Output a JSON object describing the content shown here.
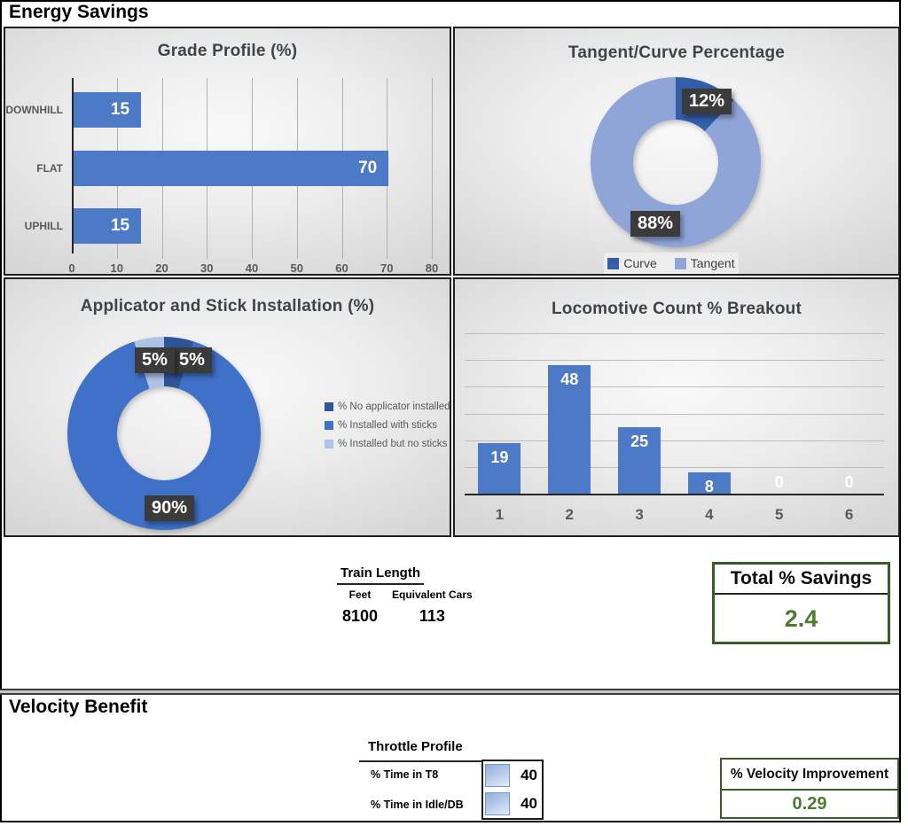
{
  "sections": {
    "energy_savings_title": "Energy Savings",
    "velocity_benefit_title": "Velocity Benefit"
  },
  "colors": {
    "bar_blue": "#4c7ac6",
    "donut_dark_blue": "#2e5597",
    "donut_medium_blue": "#3f71c8",
    "donut_light_blue": "#8fa5d8",
    "donut_pale_blue": "#aec2e8",
    "data_label_box": "#3b3b3b",
    "value_green": "#4e7b31",
    "border_green": "#375623"
  },
  "chart_data": [
    {
      "type": "bar",
      "orientation": "horizontal",
      "title": "Grade Profile (%)",
      "categories": [
        "DOWNHILL",
        "FLAT",
        "UPHILL"
      ],
      "values": [
        15,
        70,
        15
      ],
      "xlim": [
        0,
        80
      ],
      "ticks": [
        0,
        10,
        20,
        30,
        40,
        50,
        60,
        70,
        80
      ],
      "grid": true,
      "bar_color": "#4c7ac6",
      "data_labels": "inside-end, white"
    },
    {
      "type": "donut",
      "title": "Tangent/Curve Percentage",
      "segments": [
        {
          "label": "Curve",
          "value": 12,
          "pct_label": "12%",
          "color": "#335ea9"
        },
        {
          "label": "Tangent",
          "value": 88,
          "pct_label": "88%",
          "color": "#8fa5d8"
        }
      ],
      "legend_position": "bottom"
    },
    {
      "type": "donut",
      "title": "Applicator and Stick Installation (%)",
      "segments": [
        {
          "label": "% No applicator installed",
          "value": 5,
          "pct_label": "5%",
          "color": "#2e5597"
        },
        {
          "label": "% Installed with sticks",
          "value": 90,
          "pct_label": "90%",
          "color": "#3f71c8"
        },
        {
          "label": "% Installed but no sticks",
          "value": 5,
          "pct_label": "5%",
          "color": "#aec2e8"
        }
      ],
      "legend_position": "right"
    },
    {
      "type": "bar",
      "orientation": "vertical",
      "title": "Locomotive Count % Breakout",
      "categories": [
        "1",
        "2",
        "3",
        "4",
        "5",
        "6"
      ],
      "values": [
        19,
        48,
        25,
        8,
        0,
        0
      ],
      "ylim": [
        0,
        60
      ],
      "tick_step": 10,
      "grid": true,
      "bar_color": "#4c7ac6",
      "data_labels": "inside-end, white"
    }
  ],
  "summary": {
    "train_length": {
      "title": "Train Length",
      "columns": [
        "Feet",
        "Equivalent Cars"
      ],
      "values": [
        "8100",
        "113"
      ]
    },
    "total_savings": {
      "title": "Total % Savings",
      "value": "2.4"
    }
  },
  "velocity": {
    "throttle": {
      "title": "Throttle Profile",
      "rows": [
        {
          "label": "% Time in T8",
          "value": "40"
        },
        {
          "label": "% Time in Idle/DB",
          "value": "40"
        }
      ]
    },
    "improvement": {
      "title": "% Velocity Improvement",
      "value": "0.29"
    }
  }
}
